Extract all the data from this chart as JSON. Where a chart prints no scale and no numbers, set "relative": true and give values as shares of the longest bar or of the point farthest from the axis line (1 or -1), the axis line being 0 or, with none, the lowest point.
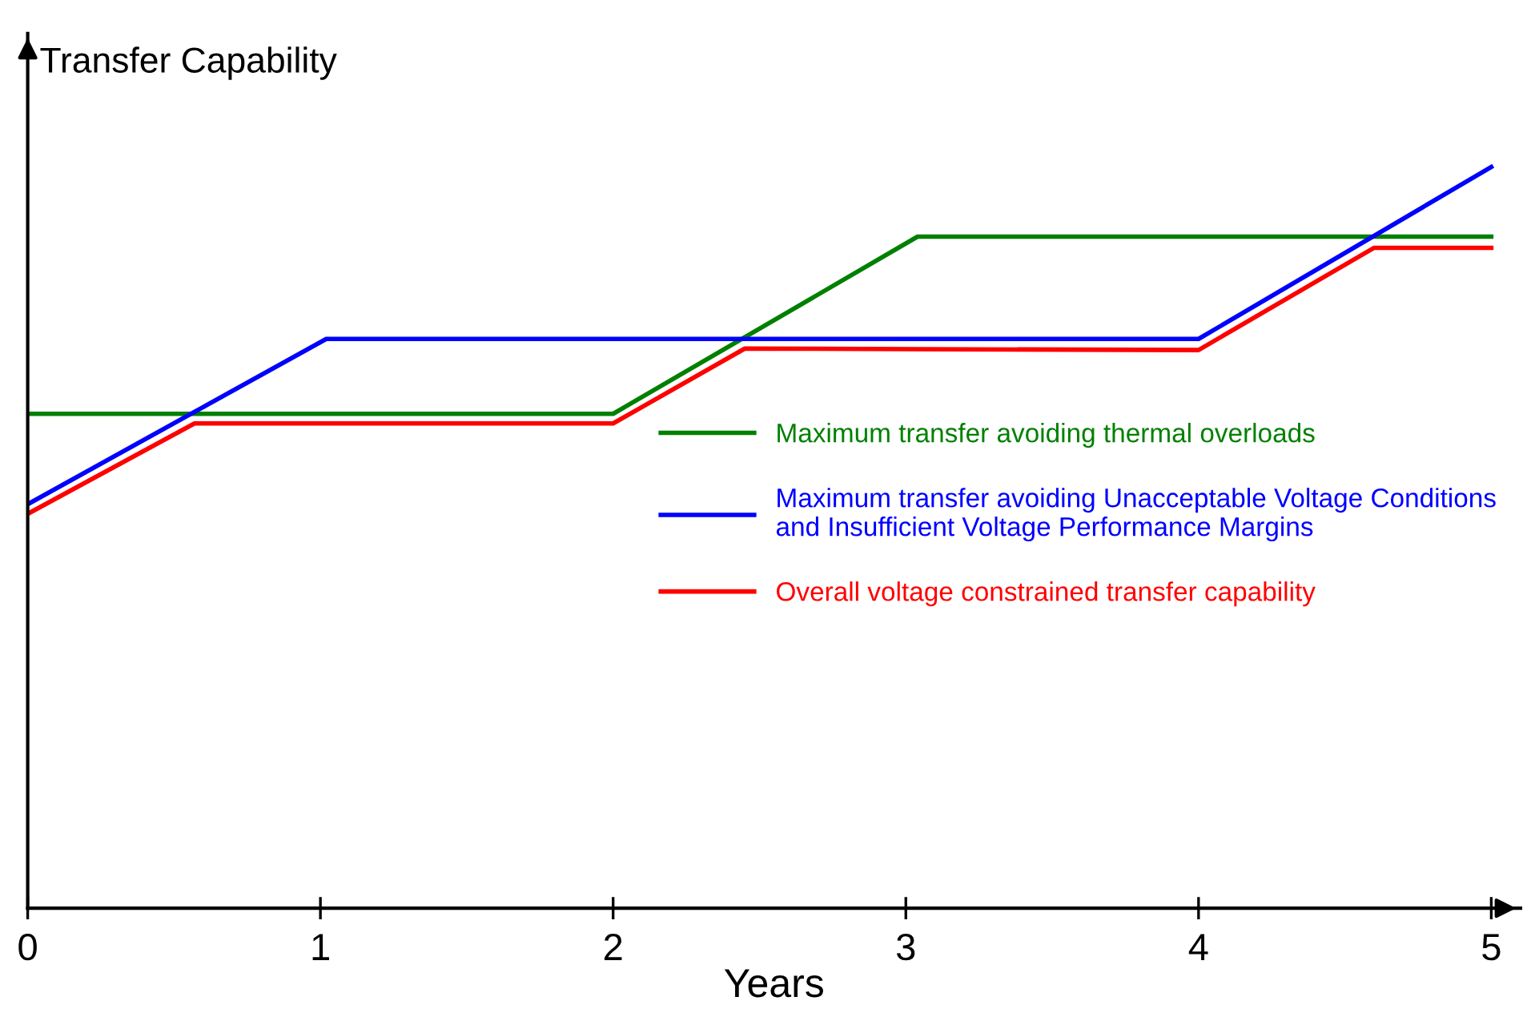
{
  "chart_data": {
    "type": "line",
    "relative": true,
    "ylabel": "Transfer Capability",
    "xlabel": "Years",
    "xlim": [
      0,
      5.1
    ],
    "xticks": [
      0,
      1,
      2,
      3,
      4,
      5
    ],
    "grid": false,
    "legend": "right",
    "marker": "none",
    "line_style": "solid",
    "series": [
      {
        "name": "Maximum transfer avoiding thermal overloads",
        "color": "#008000",
        "x": [
          0,
          2.0,
          3.04,
          5
        ],
        "values": [
          0.667,
          0.667,
          0.906,
          0.906
        ]
      },
      {
        "name": "Maximum transfer avoiding Unacceptable Voltage Conditions\nand Insufficient Voltage Performance Margins",
        "color": "#0000ff",
        "x": [
          0,
          1.02,
          4.0,
          5
        ],
        "values": [
          0.545,
          0.768,
          0.768,
          1
        ]
      },
      {
        "name": "Overall voltage constrained transfer capability",
        "color": "#ff0000",
        "x": [
          0,
          0.57,
          2.0,
          2.45,
          4.0,
          4.6,
          5
        ],
        "values": [
          0.532,
          0.654,
          0.654,
          0.755,
          0.753,
          0.891,
          0.891
        ]
      }
    ]
  }
}
